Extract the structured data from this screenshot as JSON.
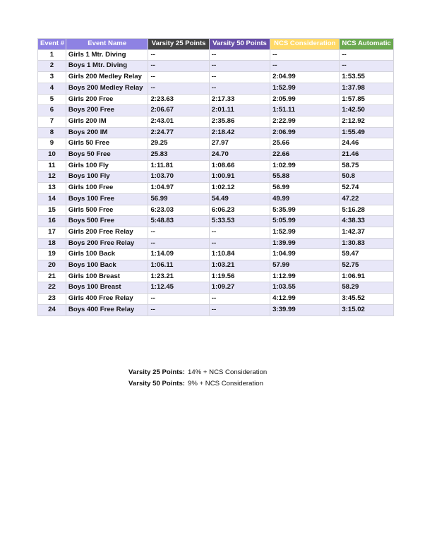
{
  "colors": {
    "header_event": "#8e82e3",
    "header_v25": "#434343",
    "header_v50": "#674ea7",
    "header_ncs_consideration": "#ffd966",
    "header_ncs_automatic": "#6aa84f",
    "alt_row": "#e8e7f8"
  },
  "table": {
    "headers": [
      "Event #",
      "Event Name",
      "Varsity 25 Points",
      "Varsity 50 Points",
      "NCS Consideration",
      "NCS Automatic"
    ],
    "rows": [
      [
        "1",
        "Girls 1 Mtr. Diving",
        "--",
        "--",
        "--",
        "--"
      ],
      [
        "2",
        "Boys 1 Mtr. Diving",
        "--",
        "--",
        "--",
        "--"
      ],
      [
        "3",
        "Girls 200 Medley Relay",
        "--",
        "--",
        "2:04.99",
        "1:53.55"
      ],
      [
        "4",
        "Boys 200 Medley Relay",
        "--",
        "--",
        "1:52.99",
        "1:37.98"
      ],
      [
        "5",
        "Girls 200 Free",
        "2:23.63",
        "2:17.33",
        "2:05.99",
        "1:57.85"
      ],
      [
        "6",
        "Boys 200 Free",
        "2:06.67",
        "2:01.11",
        "1:51.11",
        "1:42.50"
      ],
      [
        "7",
        "Girls 200 IM",
        "2:43.01",
        "2:35.86",
        "2:22.99",
        "2:12.92"
      ],
      [
        "8",
        "Boys 200 IM",
        "2:24.77",
        "2:18.42",
        "2:06.99",
        "1:55.49"
      ],
      [
        "9",
        "Girls 50 Free",
        "29.25",
        "27.97",
        "25.66",
        "24.46"
      ],
      [
        "10",
        "Boys 50 Free",
        "25.83",
        "24.70",
        "22.66",
        "21.46"
      ],
      [
        "11",
        "Girls 100 Fly",
        "1:11.81",
        "1:08.66",
        "1:02.99",
        "58.75"
      ],
      [
        "12",
        "Boys 100 Fly",
        "1:03.70",
        "1:00.91",
        "55.88",
        "50.8"
      ],
      [
        "13",
        "Girls 100 Free",
        "1:04.97",
        "1:02.12",
        "56.99",
        "52.74"
      ],
      [
        "14",
        "Boys 100 Free",
        "56.99",
        "54.49",
        "49.99",
        "47.22"
      ],
      [
        "15",
        "Girls 500 Free",
        "6:23.03",
        "6:06.23",
        "5:35.99",
        "5:16.28"
      ],
      [
        "16",
        "Boys 500 Free",
        "5:48.83",
        "5:33.53",
        "5:05.99",
        "4:38.33"
      ],
      [
        "17",
        "Girls 200 Free Relay",
        "--",
        "--",
        "1:52.99",
        "1:42.37"
      ],
      [
        "18",
        "Boys 200 Free Relay",
        "--",
        "--",
        "1:39.99",
        "1:30.83"
      ],
      [
        "19",
        "Girls 100 Back",
        "1:14.09",
        "1:10.84",
        "1:04.99",
        "59.47"
      ],
      [
        "20",
        "Boys 100 Back",
        "1:06.11",
        "1:03.21",
        "57.99",
        "52.75"
      ],
      [
        "21",
        "Girls 100 Breast",
        "1:23.21",
        "1:19.56",
        "1:12.99",
        "1:06.91"
      ],
      [
        "22",
        "Boys 100 Breast",
        "1:12.45",
        "1:09.27",
        "1:03.55",
        "58.29"
      ],
      [
        "23",
        "Girls 400 Free Relay",
        "--",
        "--",
        "4:12.99",
        "3:45.52"
      ],
      [
        "24",
        "Boys 400 Free Relay",
        "--",
        "--",
        "3:39.99",
        "3:15.02"
      ]
    ]
  },
  "notes": [
    {
      "label": "Varsity 25 Points:",
      "value": "14% + NCS Consideration"
    },
    {
      "label": "Varsity 50 Points:",
      "value": "9% + NCS Consideration"
    }
  ]
}
